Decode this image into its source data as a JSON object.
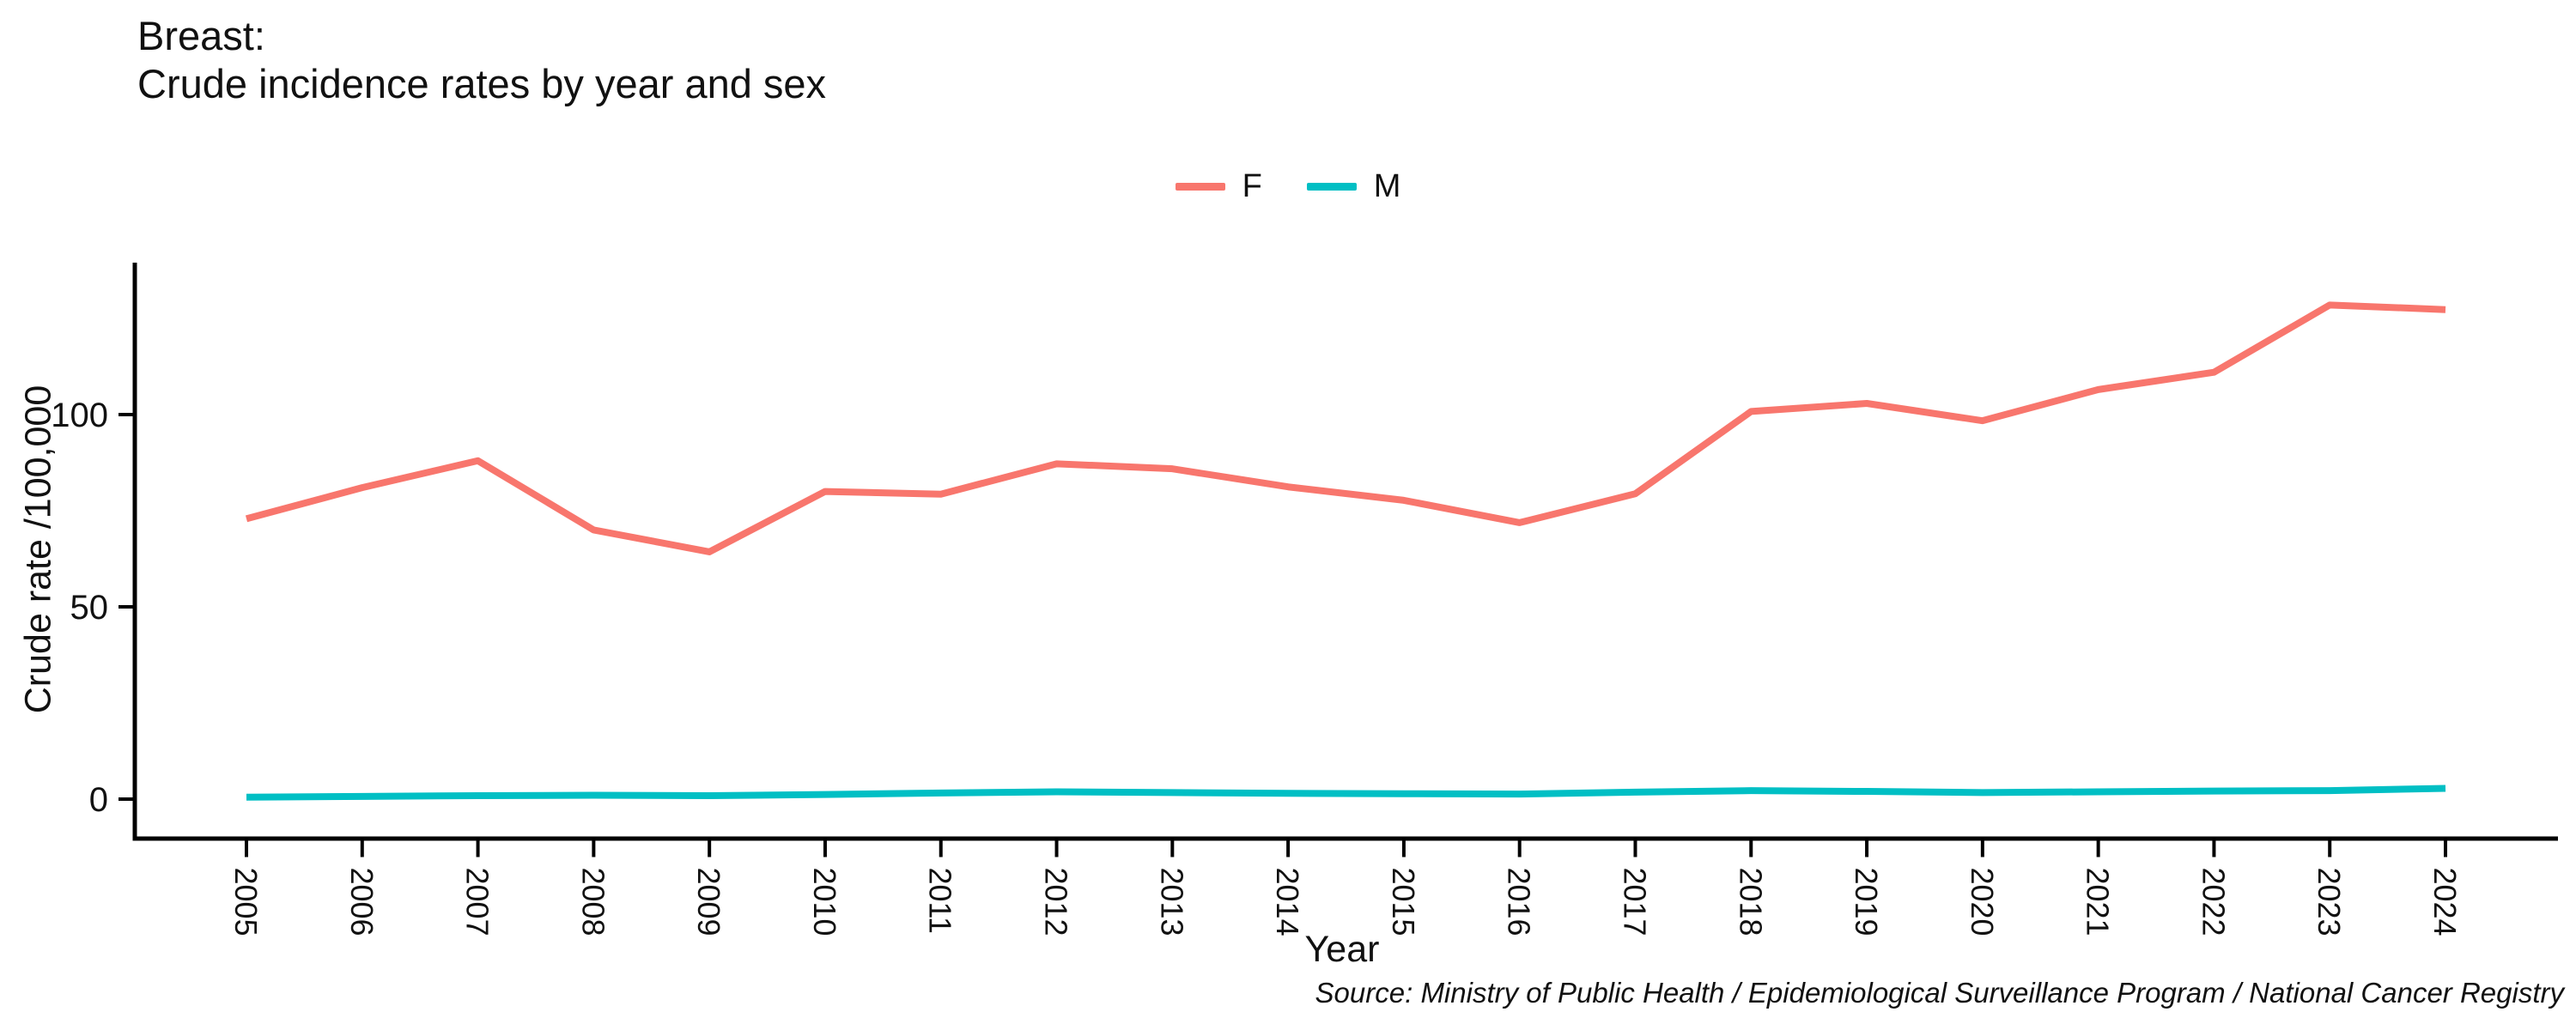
{
  "header": {
    "title_line1": "Breast:",
    "title_line2": "Crude incidence rates by year and sex"
  },
  "axes": {
    "x_title": "Year",
    "y_title": "Crude rate /100,000",
    "y_tick_labels": [
      "0",
      "50",
      "100"
    ]
  },
  "source": "Source: Ministry of Public Health / Epidemiological Surveillance Program / National Cancer Registry",
  "colors": {
    "female_line": "#F8766D",
    "male_line": "#00BFC4",
    "axis": "#000000",
    "text": "#111111"
  },
  "chart_data": {
    "type": "line",
    "title": "Breast: Crude incidence rates by year and sex",
    "xlabel": "Year",
    "ylabel": "Crude rate /100,000",
    "x": [
      2005,
      2006,
      2007,
      2008,
      2009,
      2010,
      2011,
      2012,
      2013,
      2014,
      2015,
      2016,
      2017,
      2018,
      2019,
      2020,
      2021,
      2022,
      2023,
      2024
    ],
    "y_ticks": [
      0,
      50,
      100
    ],
    "ylim": [
      -6,
      135
    ],
    "grid": false,
    "legend_position": "top-center",
    "series": [
      {
        "name": "F",
        "color": "#F8766D",
        "values": [
          72.9,
          81.0,
          88.0,
          70.0,
          64.3,
          80.0,
          79.3,
          87.2,
          85.9,
          81.2,
          77.7,
          71.9,
          79.4,
          100.8,
          102.9,
          98.4,
          106.5,
          111.0,
          128.5,
          127.3
        ]
      },
      {
        "name": "M",
        "color": "#00BFC4",
        "values": [
          0.5,
          0.7,
          0.9,
          1.0,
          0.9,
          1.2,
          1.6,
          1.9,
          1.7,
          1.5,
          1.4,
          1.3,
          1.8,
          2.2,
          2.0,
          1.7,
          1.9,
          2.1,
          2.2,
          2.8
        ]
      }
    ]
  }
}
